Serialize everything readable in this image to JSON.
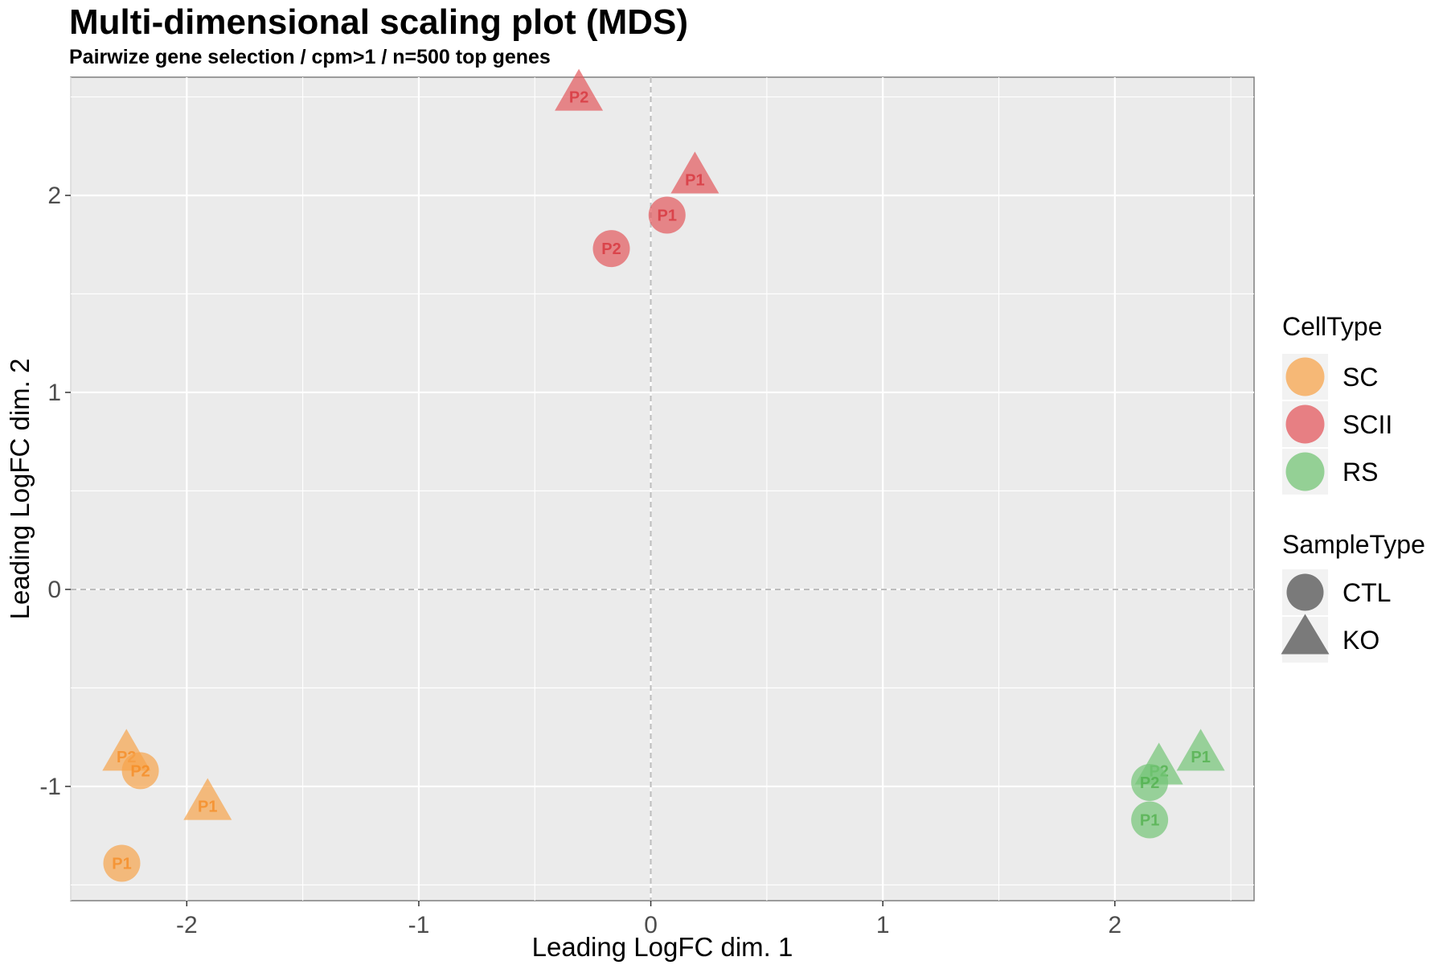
{
  "chart_data": {
    "type": "scatter",
    "title": "Multi-dimensional scaling plot (MDS)",
    "subtitle": "Pairwize gene selection / cpm>1 / n=500 top genes",
    "xlabel": "Leading LogFC dim. 1",
    "ylabel": "Leading LogFC dim. 2",
    "xlim": [
      -2.5,
      2.6
    ],
    "ylim": [
      -1.58,
      2.6
    ],
    "x_ticks": [
      -2,
      -1,
      0,
      1,
      2
    ],
    "y_ticks": [
      -1,
      0,
      1,
      2
    ],
    "grid": true,
    "reference_lines": {
      "x": 0,
      "y": 0
    },
    "points": [
      {
        "label": "P2",
        "celltype": "SCII",
        "sampletype": "KO",
        "x": -0.31,
        "y": 2.5
      },
      {
        "label": "P1",
        "celltype": "SCII",
        "sampletype": "KO",
        "x": 0.19,
        "y": 2.08
      },
      {
        "label": "P1",
        "celltype": "SCII",
        "sampletype": "CTL",
        "x": 0.07,
        "y": 1.9
      },
      {
        "label": "P2",
        "celltype": "SCII",
        "sampletype": "CTL",
        "x": -0.17,
        "y": 1.73
      },
      {
        "label": "P2",
        "celltype": "SC",
        "sampletype": "KO",
        "x": -2.26,
        "y": -0.85
      },
      {
        "label": "P2",
        "celltype": "SC",
        "sampletype": "CTL",
        "x": -2.2,
        "y": -0.92
      },
      {
        "label": "P1",
        "celltype": "SC",
        "sampletype": "KO",
        "x": -1.91,
        "y": -1.1
      },
      {
        "label": "P1",
        "celltype": "SC",
        "sampletype": "CTL",
        "x": -2.28,
        "y": -1.39
      },
      {
        "label": "P2",
        "celltype": "RS",
        "sampletype": "KO",
        "x": 2.19,
        "y": -0.92
      },
      {
        "label": "P1",
        "celltype": "RS",
        "sampletype": "KO",
        "x": 2.37,
        "y": -0.85
      },
      {
        "label": "P2",
        "celltype": "RS",
        "sampletype": "CTL",
        "x": 2.15,
        "y": -0.98
      },
      {
        "label": "P1",
        "celltype": "RS",
        "sampletype": "CTL",
        "x": 2.15,
        "y": -1.17
      }
    ],
    "legend": {
      "position": "right",
      "celltype": {
        "title": "CellType",
        "entries": [
          {
            "name": "SC",
            "color": "#f7a44c"
          },
          {
            "name": "SCII",
            "color": "#e3585d"
          },
          {
            "name": "RS",
            "color": "#74c476"
          }
        ]
      },
      "sampletype": {
        "title": "SampleType",
        "entries": [
          {
            "name": "CTL",
            "shape": "circle"
          },
          {
            "name": "KO",
            "shape": "triangle"
          }
        ]
      }
    },
    "colors": {
      "panel_background": "#ebebeb",
      "grid": "#ffffff",
      "reference_line": "#bdbdbd",
      "legend_shape": "#7a7a7a",
      "label_SC": "#f58a1f",
      "label_SCII": "#d62f37",
      "label_RS": "#4daf4a"
    }
  }
}
